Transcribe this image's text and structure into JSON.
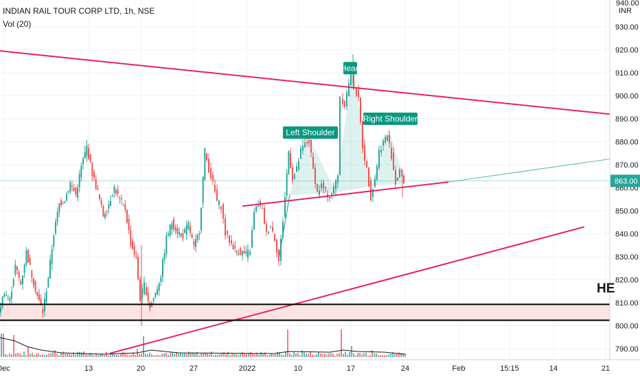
{
  "header": {
    "symbol_title": "INDIAN RAIL TOUR CORP LTD, 1h, NSE",
    "volume_label": "Vol (20)",
    "currency": "INR",
    "top_tick": "940.00"
  },
  "chart_data": {
    "type": "candlestick",
    "title": "INDIAN RAIL TOUR CORP LTD, 1h, NSE",
    "y_axis": {
      "ylim": [
        784,
        942
      ],
      "ticks": [
        "930.00",
        "920.00",
        "910.00",
        "900.00",
        "890.00",
        "880.00",
        "870.00",
        "860.00",
        "850.00",
        "840.00",
        "830.00",
        "820.00",
        "810.00",
        "800.00",
        "790.00"
      ],
      "tick_values": [
        930,
        920,
        910,
        900,
        890,
        880,
        870,
        860,
        850,
        840,
        830,
        820,
        810,
        800,
        790
      ]
    },
    "x_axis": {
      "ticks": [
        "Dec",
        "13",
        "20",
        "27",
        "2022",
        "10",
        "17",
        "24",
        "Feb",
        "15:15",
        "14",
        "21"
      ]
    },
    "last_price": {
      "value": 863,
      "label": "863.00",
      "color": "#26a69a"
    },
    "annotations": [
      {
        "text": "Head",
        "price": 912
      },
      {
        "text": "Left Shoulder",
        "price": 884
      },
      {
        "text": "Right Shoulder",
        "price": 890
      },
      {
        "text": "HE"
      }
    ],
    "support_zone": {
      "from": 802,
      "to": 809,
      "color": "#fde4e4"
    },
    "price_path": [
      [
        0,
        806
      ],
      [
        8,
        815
      ],
      [
        16,
        811
      ],
      [
        24,
        826
      ],
      [
        32,
        818
      ],
      [
        40,
        832
      ],
      [
        48,
        822
      ],
      [
        56,
        813
      ],
      [
        64,
        806
      ],
      [
        72,
        821
      ],
      [
        80,
        840
      ],
      [
        88,
        853
      ],
      [
        96,
        855
      ],
      [
        104,
        862
      ],
      [
        112,
        857
      ],
      [
        120,
        869
      ],
      [
        128,
        878
      ],
      [
        136,
        866
      ],
      [
        144,
        858
      ],
      [
        152,
        848
      ],
      [
        160,
        853
      ],
      [
        168,
        860
      ],
      [
        176,
        855
      ],
      [
        184,
        851
      ],
      [
        192,
        836
      ],
      [
        200,
        829
      ],
      [
        206,
        812
      ],
      [
        212,
        818
      ],
      [
        220,
        808
      ],
      [
        228,
        814
      ],
      [
        236,
        822
      ],
      [
        244,
        838
      ],
      [
        252,
        845
      ],
      [
        260,
        841
      ],
      [
        268,
        839
      ],
      [
        276,
        844
      ],
      [
        284,
        834
      ],
      [
        292,
        841
      ],
      [
        300,
        876
      ],
      [
        306,
        868
      ],
      [
        312,
        862
      ],
      [
        318,
        854
      ],
      [
        324,
        852
      ],
      [
        330,
        840
      ],
      [
        336,
        837
      ],
      [
        344,
        833
      ],
      [
        352,
        832
      ],
      [
        360,
        831
      ],
      [
        366,
        833
      ],
      [
        372,
        849
      ],
      [
        378,
        853
      ],
      [
        384,
        850
      ],
      [
        390,
        840
      ],
      [
        396,
        844
      ],
      [
        402,
        838
      ],
      [
        408,
        828
      ],
      [
        414,
        846
      ],
      [
        422,
        876
      ],
      [
        428,
        864
      ],
      [
        434,
        868
      ],
      [
        440,
        876
      ],
      [
        446,
        879
      ],
      [
        452,
        880
      ],
      [
        458,
        868
      ],
      [
        464,
        858
      ],
      [
        470,
        861
      ],
      [
        476,
        858
      ],
      [
        482,
        856
      ],
      [
        488,
        860
      ],
      [
        494,
        866
      ],
      [
        498,
        900
      ],
      [
        504,
        896
      ],
      [
        510,
        906
      ],
      [
        514,
        909
      ],
      [
        518,
        904
      ],
      [
        524,
        898
      ],
      [
        530,
        878
      ],
      [
        536,
        868
      ],
      [
        542,
        856
      ],
      [
        548,
        864
      ],
      [
        554,
        876
      ],
      [
        560,
        880
      ],
      [
        566,
        883
      ],
      [
        572,
        874
      ],
      [
        578,
        862
      ],
      [
        584,
        868
      ],
      [
        590,
        863
      ]
    ],
    "volume": [
      [
        0,
        34
      ],
      [
        4,
        34
      ],
      [
        20,
        32
      ],
      [
        40,
        15
      ],
      [
        80,
        10
      ],
      [
        120,
        8
      ],
      [
        160,
        6
      ],
      [
        200,
        12
      ],
      [
        208,
        30
      ],
      [
        240,
        6
      ],
      [
        300,
        6
      ],
      [
        360,
        6
      ],
      [
        418,
        40
      ],
      [
        440,
        10
      ],
      [
        496,
        40
      ],
      [
        510,
        16
      ],
      [
        540,
        10
      ],
      [
        590,
        5
      ]
    ],
    "trendlines": [
      {
        "name": "upper-resistance-line",
        "color": "#e91e63",
        "from": [
          0,
          919.5
        ],
        "to": [
          888,
          892
        ]
      },
      {
        "name": "neckline",
        "color": "#e91e63",
        "from": [
          353,
          852
        ],
        "to": [
          653,
          862.5
        ]
      },
      {
        "name": "neckline-extension",
        "color": "#26a69a",
        "from": [
          653,
          862.5
        ],
        "to": [
          888,
          872.5
        ]
      },
      {
        "name": "lower-support-line",
        "color": "#e91e63",
        "from": [
          160,
          788
        ],
        "to": [
          851,
          843
        ]
      },
      {
        "name": "zone-top-line",
        "color": "#000000",
        "from": [
          0,
          809.3
        ],
        "to": [
          888,
          809.3
        ]
      },
      {
        "name": "zone-bottom-line",
        "color": "#000000",
        "from": [
          0,
          802.4
        ],
        "to": [
          888,
          802.4
        ]
      }
    ]
  }
}
